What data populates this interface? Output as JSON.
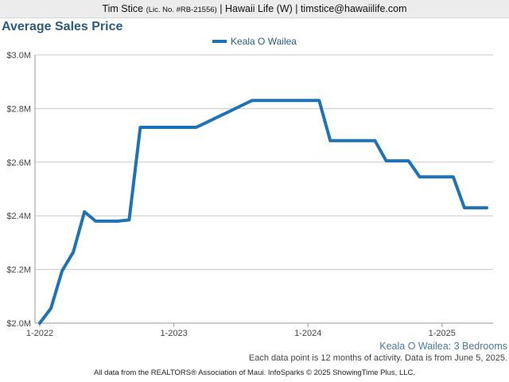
{
  "header": {
    "agent_name": "Tim Stice",
    "license": "(Lic. No. #RB-21556)",
    "brokerage_email": "| Hawaii Life (W) | timstice@hawaiilife.com"
  },
  "colors": {
    "series": "#1f73b5",
    "title": "#2a5a82"
  },
  "chart_data": {
    "type": "line",
    "title": "Average Sales Price",
    "xlabel": "",
    "ylabel": "",
    "ylim": [
      2000000,
      3000000
    ],
    "yticks": [
      2000000,
      2200000,
      2400000,
      2600000,
      2800000,
      3000000
    ],
    "ytick_labels": [
      "$2.0M",
      "$2.2M",
      "$2.4M",
      "$2.6M",
      "$2.8M",
      "$3.0M"
    ],
    "xticks": [
      "2022-01",
      "2023-01",
      "2024-01",
      "2025-01"
    ],
    "xtick_labels": [
      "1-2022",
      "1-2023",
      "1-2024",
      "1-2025"
    ],
    "grid": true,
    "legend_position": "top-center",
    "series": [
      {
        "name": "Keala O Wailea",
        "x": [
          "2022-01",
          "2022-02",
          "2022-03",
          "2022-04",
          "2022-05",
          "2022-06",
          "2022-07",
          "2022-08",
          "2022-09",
          "2022-10",
          "2022-11",
          "2022-12",
          "2023-01",
          "2023-02",
          "2023-03",
          "2023-04",
          "2023-05",
          "2023-06",
          "2023-07",
          "2023-08",
          "2023-09",
          "2023-10",
          "2023-11",
          "2023-12",
          "2024-01",
          "2024-02",
          "2024-03",
          "2024-04",
          "2024-05",
          "2024-06",
          "2024-07",
          "2024-08",
          "2024-09",
          "2024-10",
          "2024-11",
          "2024-12",
          "2025-01",
          "2025-02",
          "2025-03",
          "2025-04",
          "2025-05"
        ],
        "values": [
          2000000,
          2055000,
          2195000,
          2265000,
          2415000,
          2380000,
          2380000,
          2380000,
          2385000,
          2730000,
          2730000,
          2730000,
          2730000,
          2730000,
          2730000,
          2750000,
          2770000,
          2790000,
          2810000,
          2830000,
          2830000,
          2830000,
          2830000,
          2830000,
          2830000,
          2830000,
          2680000,
          2680000,
          2680000,
          2680000,
          2680000,
          2605000,
          2605000,
          2605000,
          2545000,
          2545000,
          2545000,
          2545000,
          2430000,
          2430000,
          2430000
        ]
      }
    ]
  },
  "notes": {
    "subtitle": "Keala O Wailea: 3 Bedrooms",
    "data_note": "Each data point is 12 months of activity. Data is from June 5, 2025."
  },
  "footer": {
    "text": "All data from the REALTORS® Association of Maui. InfoSparks © 2025 ShowingTime Plus, LLC."
  }
}
